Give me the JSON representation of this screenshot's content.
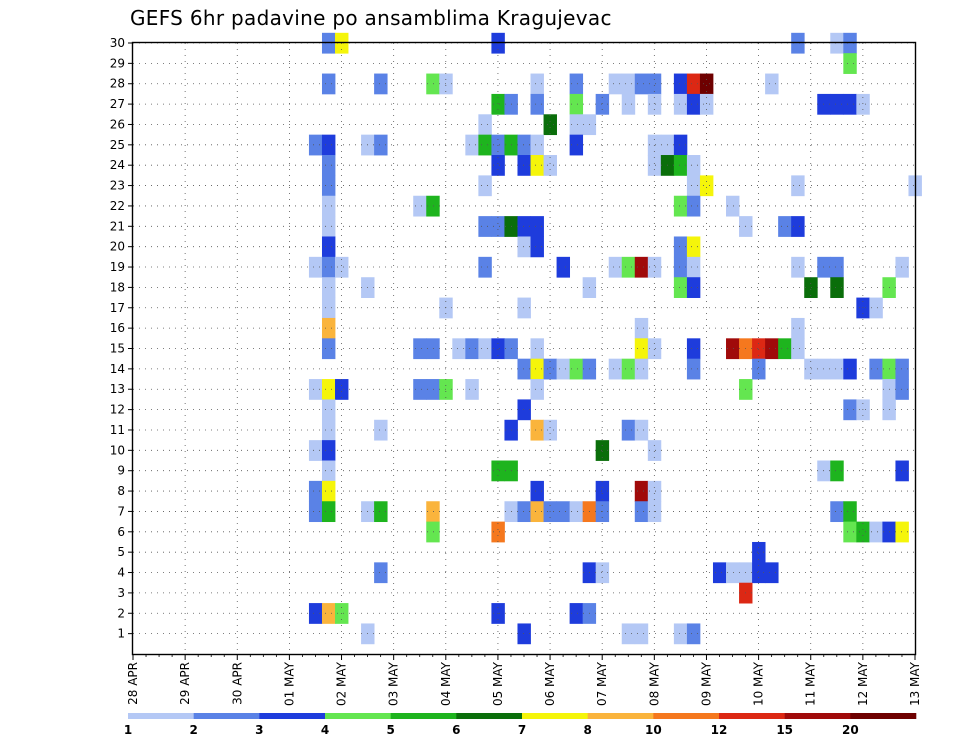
{
  "chart_data": {
    "type": "heatmap",
    "title": "GEFS 6hr padavine po ansamblima Kragujevac",
    "x_tick_labels": [
      "28 APR",
      "29 APR",
      "30 APR",
      "01 MAY",
      "02 MAY",
      "03 MAY",
      "04 MAY",
      "05 MAY",
      "06 MAY",
      "07 MAY",
      "08 MAY",
      "09 MAY",
      "10 MAY",
      "11 MAY",
      "12 MAY",
      "13 MAY"
    ],
    "y_tick_labels": [
      "1",
      "2",
      "3",
      "4",
      "5",
      "6",
      "7",
      "8",
      "9",
      "10",
      "11",
      "12",
      "13",
      "14",
      "15",
      "16",
      "17",
      "18",
      "19",
      "20",
      "21",
      "22",
      "23",
      "24",
      "25",
      "26",
      "27",
      "28",
      "29",
      "30"
    ],
    "ylim": [
      0,
      30
    ],
    "time_steps_per_day": 4,
    "n_time_steps": 61,
    "grid": true,
    "legend": {
      "placement": "bottom",
      "labels": [
        "1",
        "2",
        "3",
        "4",
        "5",
        "6",
        "7",
        "8",
        "10",
        "12",
        "15",
        "20"
      ],
      "colors": [
        "#b4c8f5",
        "#5a82e6",
        "#1e3cdc",
        "#64e650",
        "#1eb41e",
        "#0a6e0a",
        "#f5f50a",
        "#fab43c",
        "#f5781e",
        "#dc2814",
        "#a00a0a",
        "#6e0000"
      ]
    },
    "cells": [
      [
        15,
        30,
        1
      ],
      [
        16,
        30,
        6
      ],
      [
        28,
        30,
        2
      ],
      [
        51,
        30,
        1
      ],
      [
        54,
        30,
        0
      ],
      [
        55,
        30,
        1
      ],
      [
        55,
        29,
        3
      ],
      [
        15,
        28,
        1
      ],
      [
        19,
        28,
        1
      ],
      [
        23,
        28,
        3
      ],
      [
        24,
        28,
        0
      ],
      [
        31,
        28,
        0
      ],
      [
        34,
        28,
        1
      ],
      [
        37,
        28,
        0
      ],
      [
        38,
        28,
        0
      ],
      [
        39,
        28,
        1
      ],
      [
        40,
        28,
        1
      ],
      [
        42,
        28,
        2
      ],
      [
        43,
        28,
        9
      ],
      [
        44,
        28,
        11
      ],
      [
        49,
        28,
        0
      ],
      [
        28,
        27,
        4
      ],
      [
        29,
        27,
        1
      ],
      [
        31,
        27,
        1
      ],
      [
        34,
        27,
        3
      ],
      [
        36,
        27,
        1
      ],
      [
        38,
        27,
        0
      ],
      [
        40,
        27,
        0
      ],
      [
        42,
        27,
        0
      ],
      [
        43,
        27,
        2
      ],
      [
        44,
        27,
        0
      ],
      [
        53,
        27,
        2
      ],
      [
        54,
        27,
        2
      ],
      [
        55,
        27,
        2
      ],
      [
        56,
        27,
        0
      ],
      [
        27,
        26,
        0
      ],
      [
        32,
        26,
        5
      ],
      [
        34,
        26,
        0
      ],
      [
        35,
        26,
        0
      ],
      [
        14,
        25,
        1
      ],
      [
        15,
        25,
        2
      ],
      [
        18,
        25,
        0
      ],
      [
        19,
        25,
        1
      ],
      [
        26,
        25,
        0
      ],
      [
        27,
        25,
        4
      ],
      [
        28,
        25,
        1
      ],
      [
        29,
        25,
        4
      ],
      [
        30,
        25,
        1
      ],
      [
        31,
        25,
        0
      ],
      [
        34,
        25,
        2
      ],
      [
        40,
        25,
        0
      ],
      [
        41,
        25,
        0
      ],
      [
        42,
        25,
        2
      ],
      [
        15,
        24,
        1
      ],
      [
        28,
        24,
        2
      ],
      [
        30,
        24,
        2
      ],
      [
        31,
        24,
        6
      ],
      [
        32,
        24,
        0
      ],
      [
        40,
        24,
        0
      ],
      [
        41,
        24,
        5
      ],
      [
        42,
        24,
        4
      ],
      [
        43,
        24,
        0
      ],
      [
        15,
        23,
        1
      ],
      [
        27,
        23,
        0
      ],
      [
        43,
        23,
        0
      ],
      [
        44,
        23,
        6
      ],
      [
        51,
        23,
        0
      ],
      [
        60,
        23,
        0
      ],
      [
        15,
        22,
        0
      ],
      [
        22,
        22,
        0
      ],
      [
        23,
        22,
        4
      ],
      [
        42,
        22,
        3
      ],
      [
        43,
        22,
        1
      ],
      [
        46,
        22,
        0
      ],
      [
        15,
        21,
        0
      ],
      [
        27,
        21,
        1
      ],
      [
        28,
        21,
        1
      ],
      [
        29,
        21,
        5
      ],
      [
        30,
        21,
        2
      ],
      [
        31,
        21,
        2
      ],
      [
        47,
        21,
        0
      ],
      [
        50,
        21,
        1
      ],
      [
        51,
        21,
        2
      ],
      [
        15,
        20,
        2
      ],
      [
        30,
        20,
        0
      ],
      [
        31,
        20,
        2
      ],
      [
        42,
        20,
        1
      ],
      [
        43,
        20,
        6
      ],
      [
        14,
        19,
        0
      ],
      [
        15,
        19,
        1
      ],
      [
        16,
        19,
        0
      ],
      [
        27,
        19,
        1
      ],
      [
        33,
        19,
        2
      ],
      [
        37,
        19,
        0
      ],
      [
        38,
        19,
        3
      ],
      [
        39,
        19,
        10
      ],
      [
        40,
        19,
        0
      ],
      [
        42,
        19,
        1
      ],
      [
        43,
        19,
        0
      ],
      [
        51,
        19,
        0
      ],
      [
        53,
        19,
        1
      ],
      [
        54,
        19,
        1
      ],
      [
        59,
        19,
        0
      ],
      [
        15,
        18,
        0
      ],
      [
        18,
        18,
        0
      ],
      [
        35,
        18,
        0
      ],
      [
        42,
        18,
        3
      ],
      [
        43,
        18,
        2
      ],
      [
        52,
        18,
        5
      ],
      [
        54,
        18,
        5
      ],
      [
        58,
        18,
        3
      ],
      [
        15,
        17,
        0
      ],
      [
        24,
        17,
        0
      ],
      [
        30,
        17,
        0
      ],
      [
        56,
        17,
        2
      ],
      [
        57,
        17,
        0
      ],
      [
        15,
        16,
        7
      ],
      [
        39,
        16,
        0
      ],
      [
        51,
        16,
        0
      ],
      [
        15,
        15,
        1
      ],
      [
        22,
        15,
        1
      ],
      [
        23,
        15,
        1
      ],
      [
        25,
        15,
        0
      ],
      [
        26,
        15,
        1
      ],
      [
        27,
        15,
        0
      ],
      [
        28,
        15,
        2
      ],
      [
        29,
        15,
        1
      ],
      [
        31,
        15,
        0
      ],
      [
        39,
        15,
        6
      ],
      [
        40,
        15,
        0
      ],
      [
        43,
        15,
        2
      ],
      [
        46,
        15,
        10
      ],
      [
        47,
        15,
        8
      ],
      [
        48,
        15,
        9
      ],
      [
        49,
        15,
        10
      ],
      [
        50,
        15,
        4
      ],
      [
        51,
        15,
        0
      ],
      [
        30,
        14,
        1
      ],
      [
        31,
        14,
        6
      ],
      [
        32,
        14,
        1
      ],
      [
        33,
        14,
        0
      ],
      [
        34,
        14,
        3
      ],
      [
        35,
        14,
        1
      ],
      [
        37,
        14,
        0
      ],
      [
        38,
        14,
        3
      ],
      [
        39,
        14,
        0
      ],
      [
        43,
        14,
        1
      ],
      [
        48,
        14,
        1
      ],
      [
        52,
        14,
        0
      ],
      [
        53,
        14,
        0
      ],
      [
        54,
        14,
        0
      ],
      [
        55,
        14,
        2
      ],
      [
        57,
        14,
        1
      ],
      [
        58,
        14,
        3
      ],
      [
        59,
        14,
        1
      ],
      [
        14,
        13,
        0
      ],
      [
        15,
        13,
        6
      ],
      [
        16,
        13,
        2
      ],
      [
        22,
        13,
        1
      ],
      [
        23,
        13,
        1
      ],
      [
        24,
        13,
        3
      ],
      [
        26,
        13,
        0
      ],
      [
        31,
        13,
        0
      ],
      [
        47,
        13,
        3
      ],
      [
        58,
        13,
        0
      ],
      [
        59,
        13,
        1
      ],
      [
        15,
        12,
        0
      ],
      [
        30,
        12,
        2
      ],
      [
        55,
        12,
        1
      ],
      [
        56,
        12,
        0
      ],
      [
        58,
        12,
        0
      ],
      [
        15,
        11,
        0
      ],
      [
        19,
        11,
        0
      ],
      [
        29,
        11,
        2
      ],
      [
        31,
        11,
        7
      ],
      [
        32,
        11,
        0
      ],
      [
        38,
        11,
        1
      ],
      [
        39,
        11,
        0
      ],
      [
        14,
        10,
        0
      ],
      [
        15,
        10,
        2
      ],
      [
        36,
        10,
        5
      ],
      [
        40,
        10,
        0
      ],
      [
        15,
        9,
        0
      ],
      [
        28,
        9,
        4
      ],
      [
        29,
        9,
        4
      ],
      [
        53,
        9,
        0
      ],
      [
        54,
        9,
        4
      ],
      [
        59,
        9,
        2
      ],
      [
        14,
        8,
        1
      ],
      [
        15,
        8,
        6
      ],
      [
        31,
        8,
        2
      ],
      [
        36,
        8,
        2
      ],
      [
        39,
        8,
        10
      ],
      [
        40,
        8,
        0
      ],
      [
        14,
        7,
        1
      ],
      [
        15,
        7,
        4
      ],
      [
        18,
        7,
        0
      ],
      [
        19,
        7,
        4
      ],
      [
        23,
        7,
        7
      ],
      [
        29,
        7,
        0
      ],
      [
        30,
        7,
        1
      ],
      [
        31,
        7,
        7
      ],
      [
        32,
        7,
        1
      ],
      [
        33,
        7,
        1
      ],
      [
        34,
        7,
        0
      ],
      [
        35,
        7,
        8
      ],
      [
        36,
        7,
        1
      ],
      [
        39,
        7,
        1
      ],
      [
        40,
        7,
        0
      ],
      [
        54,
        7,
        1
      ],
      [
        55,
        7,
        4
      ],
      [
        23,
        6,
        3
      ],
      [
        28,
        6,
        8
      ],
      [
        55,
        6,
        3
      ],
      [
        56,
        6,
        4
      ],
      [
        57,
        6,
        0
      ],
      [
        58,
        6,
        2
      ],
      [
        59,
        6,
        6
      ],
      [
        48,
        5,
        2
      ],
      [
        19,
        4,
        1
      ],
      [
        35,
        4,
        2
      ],
      [
        36,
        4,
        0
      ],
      [
        45,
        4,
        2
      ],
      [
        46,
        4,
        0
      ],
      [
        47,
        4,
        0
      ],
      [
        48,
        4,
        2
      ],
      [
        49,
        4,
        2
      ],
      [
        47,
        3,
        9
      ],
      [
        14,
        2,
        2
      ],
      [
        15,
        2,
        7
      ],
      [
        16,
        2,
        3
      ],
      [
        28,
        2,
        2
      ],
      [
        34,
        2,
        2
      ],
      [
        35,
        2,
        1
      ],
      [
        18,
        1,
        0
      ],
      [
        30,
        1,
        2
      ],
      [
        38,
        1,
        0
      ],
      [
        39,
        1,
        0
      ],
      [
        42,
        1,
        0
      ],
      [
        43,
        1,
        1
      ]
    ]
  }
}
